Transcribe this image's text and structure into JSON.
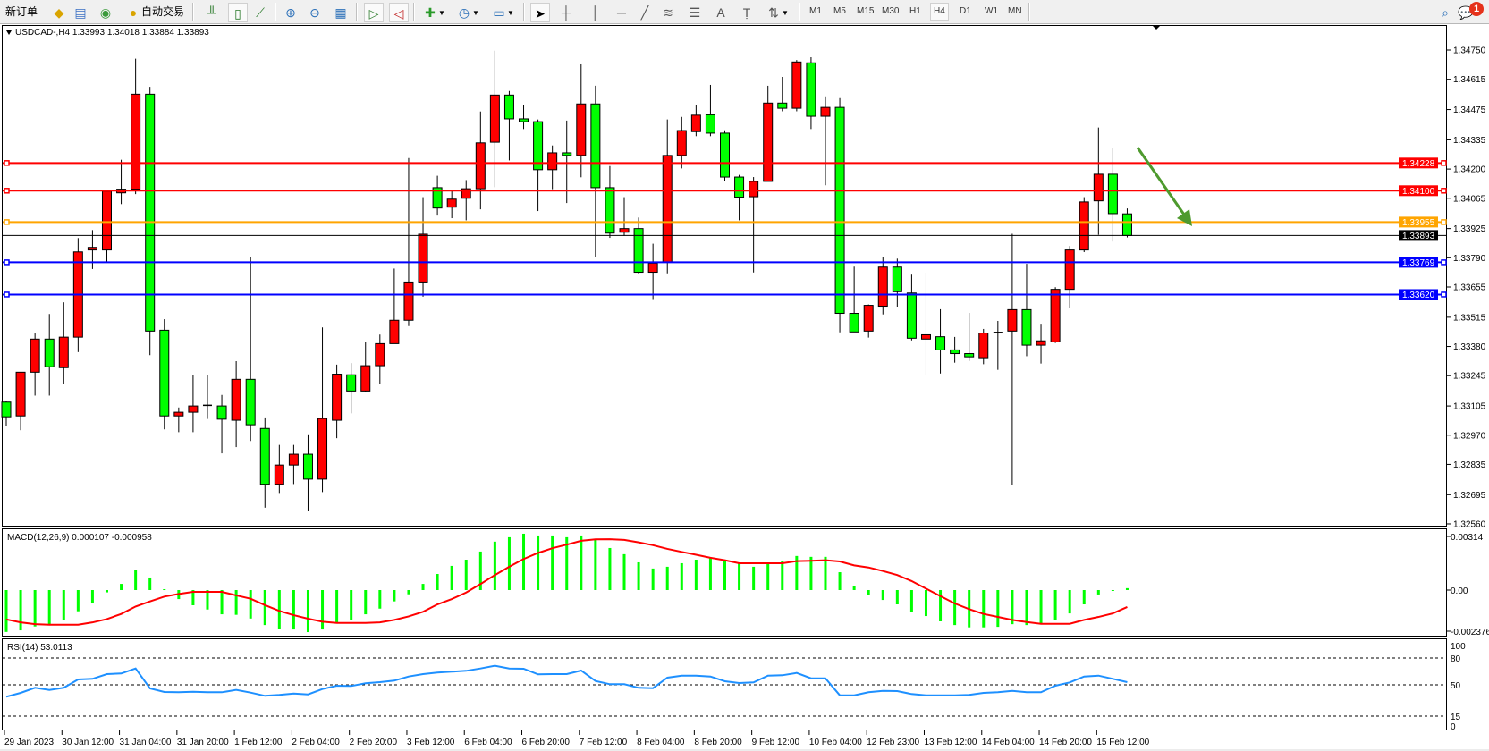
{
  "toolbar": {
    "new_order_label": "新订单",
    "auto_trading_label": "自动交易",
    "timeframes": [
      "M1",
      "M5",
      "M15",
      "M30",
      "H1",
      "H4",
      "D1",
      "W1",
      "MN"
    ],
    "active_timeframe": "H4",
    "notification_count": "1",
    "icons": [
      "new-order-icon",
      "metaeditor-icon",
      "market-watch-icon",
      "signals-icon",
      "auto-trading-icon",
      "bar-chart-icon",
      "candlestick-chart-icon",
      "line-chart-icon",
      "zoom-in-icon",
      "zoom-out-icon",
      "tile-windows-icon",
      "auto-scroll-icon",
      "chart-shift-icon",
      "indicators-icon",
      "periods-icon",
      "templates-icon",
      "cursor-icon",
      "crosshair-icon",
      "vertical-line-icon",
      "horizontal-line-icon",
      "trendline-icon",
      "fibonacci-icon",
      "fibonacci-fan-icon",
      "text-icon",
      "text-label-icon",
      "arrows-icon",
      "search-icon",
      "notifications-icon"
    ]
  },
  "chart_data": {
    "type": "candlestick",
    "header": "USDCAD-,H4  1.33993 1.34018 1.33884 1.33893",
    "colors": {
      "up": "#ff0000",
      "down": "#00ff00",
      "signal": "#ff0000",
      "histogram": "#00ff00",
      "rsi": "#1e90ff",
      "arrow": "#4e9a2e"
    },
    "price_ticks": [
      "1.34750",
      "1.34615",
      "1.34475",
      "1.34335",
      "1.34200",
      "1.34065",
      "1.33925",
      "1.33790",
      "1.33655",
      "1.33515",
      "1.33380",
      "1.33245",
      "1.33105",
      "1.32970",
      "1.32835",
      "1.32695",
      "1.32560"
    ],
    "x_labels": [
      "29 Jan 2023",
      "30 Jan 12:00",
      "31 Jan 04:00",
      "31 Jan 20:00",
      "1 Feb 12:00",
      "2 Feb 04:00",
      "2 Feb 20:00",
      "3 Feb 12:00",
      "6 Feb 04:00",
      "6 Feb 20:00",
      "7 Feb 12:00",
      "8 Feb 04:00",
      "8 Feb 20:00",
      "9 Feb 12:00",
      "10 Feb 04:00",
      "12 Feb 23:00",
      "13 Feb 12:00",
      "14 Feb 04:00",
      "14 Feb 20:00",
      "15 Feb 12:00"
    ],
    "levels": [
      {
        "price": "1.34228",
        "color": "#ff0000"
      },
      {
        "price": "1.34100",
        "color": "#ff0000"
      },
      {
        "price": "1.33955",
        "color": "#ffa500"
      },
      {
        "price": "1.33893",
        "color": "#000000"
      },
      {
        "price": "1.33769",
        "color": "#0000ff"
      },
      {
        "price": "1.33620",
        "color": "#0000ff"
      }
    ],
    "candles_ohlc": [
      [
        1.33123,
        1.3313,
        1.33014,
        1.33055
      ],
      [
        1.33059,
        1.33261,
        1.32993,
        1.33261
      ],
      [
        1.33261,
        1.3344,
        1.33153,
        1.33414
      ],
      [
        1.33414,
        1.3353,
        1.33153,
        1.33286
      ],
      [
        1.33282,
        1.33584,
        1.33207,
        1.33423
      ],
      [
        1.33423,
        1.33881,
        1.33354,
        1.33817
      ],
      [
        1.33826,
        1.33918,
        1.33738,
        1.33838
      ],
      [
        1.33826,
        1.34098,
        1.33767,
        1.34098
      ],
      [
        1.3409,
        1.34243,
        1.34038,
        1.34107
      ],
      [
        1.34107,
        1.3471,
        1.34084,
        1.34546
      ],
      [
        1.34546,
        1.3458,
        1.3334,
        1.33451
      ],
      [
        1.33455,
        1.33506,
        1.32997,
        1.33059
      ],
      [
        1.33059,
        1.33098,
        1.32984,
        1.33076
      ],
      [
        1.33076,
        1.33247,
        1.32984,
        1.33105
      ],
      [
        1.33108,
        1.33247,
        1.33045,
        1.33109
      ],
      [
        1.33105,
        1.33156,
        1.32886,
        1.33044
      ],
      [
        1.33039,
        1.33312,
        1.32915,
        1.33228
      ],
      [
        1.33228,
        1.33794,
        1.32943,
        1.33018
      ],
      [
        1.33001,
        1.33052,
        1.32635,
        1.32743
      ],
      [
        1.32743,
        1.32925,
        1.32703,
        1.32832
      ],
      [
        1.32832,
        1.32925,
        1.32744,
        1.32882
      ],
      [
        1.32882,
        1.32974,
        1.32622,
        1.32767
      ],
      [
        1.32767,
        1.33468,
        1.32707,
        1.33047
      ],
      [
        1.33039,
        1.33296,
        1.32956,
        1.33252
      ],
      [
        1.33249,
        1.33303,
        1.33071,
        1.33174
      ],
      [
        1.33174,
        1.334,
        1.3317,
        1.33291
      ],
      [
        1.33291,
        1.33435,
        1.33207,
        1.33393
      ],
      [
        1.33393,
        1.3374,
        1.33393,
        1.33501
      ],
      [
        1.33501,
        1.34251,
        1.33474,
        1.33678
      ],
      [
        1.33678,
        1.3407,
        1.3361,
        1.33899
      ],
      [
        1.34114,
        1.34169,
        1.33985,
        1.3402
      ],
      [
        1.34024,
        1.34099,
        1.33973,
        1.34061
      ],
      [
        1.34065,
        1.34149,
        1.33963,
        1.34109
      ],
      [
        1.34109,
        1.34466,
        1.34014,
        1.34321
      ],
      [
        1.34324,
        1.34747,
        1.34116,
        1.34542
      ],
      [
        1.34542,
        1.34561,
        1.3424,
        1.34432
      ],
      [
        1.34432,
        1.34498,
        1.34385,
        1.34419
      ],
      [
        1.34419,
        1.34429,
        1.34006,
        1.34197
      ],
      [
        1.34197,
        1.34309,
        1.34107,
        1.34275
      ],
      [
        1.34275,
        1.34424,
        1.34043,
        1.34263
      ],
      [
        1.34263,
        1.34684,
        1.34162,
        1.34501
      ],
      [
        1.34501,
        1.34585,
        1.33792,
        1.34114
      ],
      [
        1.34114,
        1.34214,
        1.33882,
        1.33904
      ],
      [
        1.33908,
        1.3407,
        1.33891,
        1.33925
      ],
      [
        1.33925,
        1.33976,
        1.33715,
        1.33723
      ],
      [
        1.33723,
        1.33855,
        1.33599,
        1.33765
      ],
      [
        1.33769,
        1.34429,
        1.33718,
        1.34263
      ],
      [
        1.34263,
        1.34441,
        1.34203,
        1.34378
      ],
      [
        1.34373,
        1.34498,
        1.34352,
        1.34449
      ],
      [
        1.34451,
        1.34589,
        1.34352,
        1.34366
      ],
      [
        1.34366,
        1.34379,
        1.34146,
        1.34163
      ],
      [
        1.34163,
        1.34173,
        1.33963,
        1.3407
      ],
      [
        1.34072,
        1.34163,
        1.33722,
        1.34143
      ],
      [
        1.34143,
        1.34585,
        1.34143,
        1.34505
      ],
      [
        1.34505,
        1.34626,
        1.34467,
        1.34481
      ],
      [
        1.34481,
        1.34704,
        1.34467,
        1.34695
      ],
      [
        1.34691,
        1.34717,
        1.34385,
        1.34444
      ],
      [
        1.34444,
        1.34536,
        1.34125,
        1.34485
      ],
      [
        1.34485,
        1.34528,
        1.33445,
        1.33533
      ],
      [
        1.33533,
        1.33749,
        1.33447,
        1.33447
      ],
      [
        1.33451,
        1.33574,
        1.33421,
        1.3357
      ],
      [
        1.33566,
        1.33794,
        1.33528,
        1.33747
      ],
      [
        1.33747,
        1.33786,
        1.33564,
        1.33633
      ],
      [
        1.33627,
        1.33712,
        1.33408,
        1.33418
      ],
      [
        1.33414,
        1.33721,
        1.33248,
        1.33434
      ],
      [
        1.33425,
        1.33552,
        1.33255,
        1.33364
      ],
      [
        1.33364,
        1.33424,
        1.33305,
        1.33347
      ],
      [
        1.33347,
        1.33535,
        1.33313,
        1.33332
      ],
      [
        1.33328,
        1.33461,
        1.33298,
        1.33442
      ],
      [
        1.33445,
        1.33498,
        1.33272,
        1.33444
      ],
      [
        1.33451,
        1.33901,
        1.32741,
        1.3355
      ],
      [
        1.3355,
        1.33762,
        1.33335,
        1.33386
      ],
      [
        1.33386,
        1.33485,
        1.33301,
        1.33406
      ],
      [
        1.33401,
        1.33654,
        1.33396,
        1.33644
      ],
      [
        1.33644,
        1.33844,
        1.3356,
        1.33826
      ],
      [
        1.33826,
        1.3407,
        1.33816,
        1.34048
      ],
      [
        1.34053,
        1.34392,
        1.33896,
        1.34176
      ],
      [
        1.34176,
        1.34297,
        1.33865,
        1.33994
      ],
      [
        1.33993,
        1.34018,
        1.33884,
        1.33893
      ]
    ],
    "macd": {
      "label": "MACD(12,26,9) 0.000107 -0.000958",
      "ticks": [
        "0.00314",
        "0.00",
        "-0.002376"
      ],
      "histogram": [
        -0.00237,
        -0.00228,
        -0.00206,
        -0.00194,
        -0.00172,
        -0.0012,
        -0.00076,
        -0.00013,
        0.00035,
        0.00112,
        0.00071,
        5e-05,
        -0.00051,
        -0.00086,
        -0.0011,
        -0.00137,
        -0.0014,
        -0.00161,
        -0.00198,
        -0.00218,
        -0.00223,
        -0.00238,
        -0.00223,
        -0.00186,
        -0.00167,
        -0.00137,
        -0.00105,
        -0.00064,
        -0.00024,
        0.00035,
        0.00091,
        0.00137,
        0.00172,
        0.00218,
        0.00274,
        0.00299,
        0.00319,
        0.00309,
        0.00309,
        0.00299,
        0.00309,
        0.00284,
        0.00238,
        0.00203,
        0.00157,
        0.00122,
        0.00132,
        0.00152,
        0.00172,
        0.00183,
        0.00169,
        0.00152,
        0.00132,
        0.00152,
        0.00167,
        0.00193,
        0.00188,
        0.00188,
        0.00101,
        0.00025,
        -0.00029,
        -0.00056,
        -0.00081,
        -0.00122,
        -0.00147,
        -0.00177,
        -0.00198,
        -0.00211,
        -0.00211,
        -0.00208,
        -0.00193,
        -0.00198,
        -0.00188,
        -0.00167,
        -0.00132,
        -0.00081,
        -0.00025,
        -2e-05,
        0.000107
      ],
      "signal": [
        -0.00166,
        -0.00183,
        -0.00193,
        -0.00196,
        -0.00196,
        -0.00196,
        -0.00183,
        -0.00164,
        -0.00135,
        -0.00093,
        -0.00064,
        -0.00037,
        -0.00022,
        -0.0001,
        -0.0001,
        -0.0001,
        -0.0003,
        -0.00049,
        -0.00085,
        -0.00118,
        -0.00142,
        -0.00162,
        -0.00179,
        -0.00186,
        -0.00186,
        -0.00186,
        -0.00183,
        -0.00169,
        -0.00149,
        -0.00123,
        -0.00081,
        -0.00051,
        -0.00014,
        0.00034,
        0.00085,
        0.00132,
        0.00176,
        0.0021,
        0.00237,
        0.00257,
        0.00279,
        0.00287,
        0.00288,
        0.00284,
        0.0027,
        0.00254,
        0.00233,
        0.00216,
        0.002,
        0.00183,
        0.00169,
        0.00152,
        0.00152,
        0.00152,
        0.00152,
        0.00164,
        0.00166,
        0.00169,
        0.00162,
        0.0014,
        0.00128,
        0.00108,
        0.00085,
        0.00051,
        8e-05,
        -0.00034,
        -0.00076,
        -0.00108,
        -0.00135,
        -0.00152,
        -0.00169,
        -0.00181,
        -0.00191,
        -0.00191,
        -0.00191,
        -0.00169,
        -0.00152,
        -0.00132,
        -0.000958
      ]
    },
    "rsi": {
      "label": "RSI(14) 53.0113",
      "ticks": [
        "100",
        "80",
        "50",
        "15",
        "0"
      ],
      "levels": [
        80,
        50,
        15
      ],
      "values": [
        36.7,
        41,
        46.7,
        44.3,
        46.7,
        56,
        56.7,
        62,
        62.7,
        68.3,
        46,
        42,
        41.7,
        42.3,
        41.7,
        41.7,
        44.3,
        41.3,
        37.7,
        38.7,
        40.3,
        39.3,
        45.3,
        49,
        48.7,
        51.7,
        53,
        54.7,
        59.3,
        62,
        63.7,
        64.7,
        65.7,
        68.3,
        71.3,
        68.3,
        68,
        61.7,
        62,
        62,
        66,
        54.3,
        50.7,
        50.7,
        46.7,
        46.3,
        58,
        60.3,
        60.3,
        59.3,
        54,
        52,
        52.7,
        60.3,
        60.7,
        63.3,
        57.3,
        57.3,
        38.3,
        38.3,
        41.7,
        43.3,
        43,
        39.7,
        38.3,
        38.3,
        38.3,
        38.7,
        41,
        41.7,
        43.3,
        41.7,
        41.7,
        49,
        52.7,
        59.3,
        60.3,
        56.7,
        53.0113
      ]
    }
  }
}
